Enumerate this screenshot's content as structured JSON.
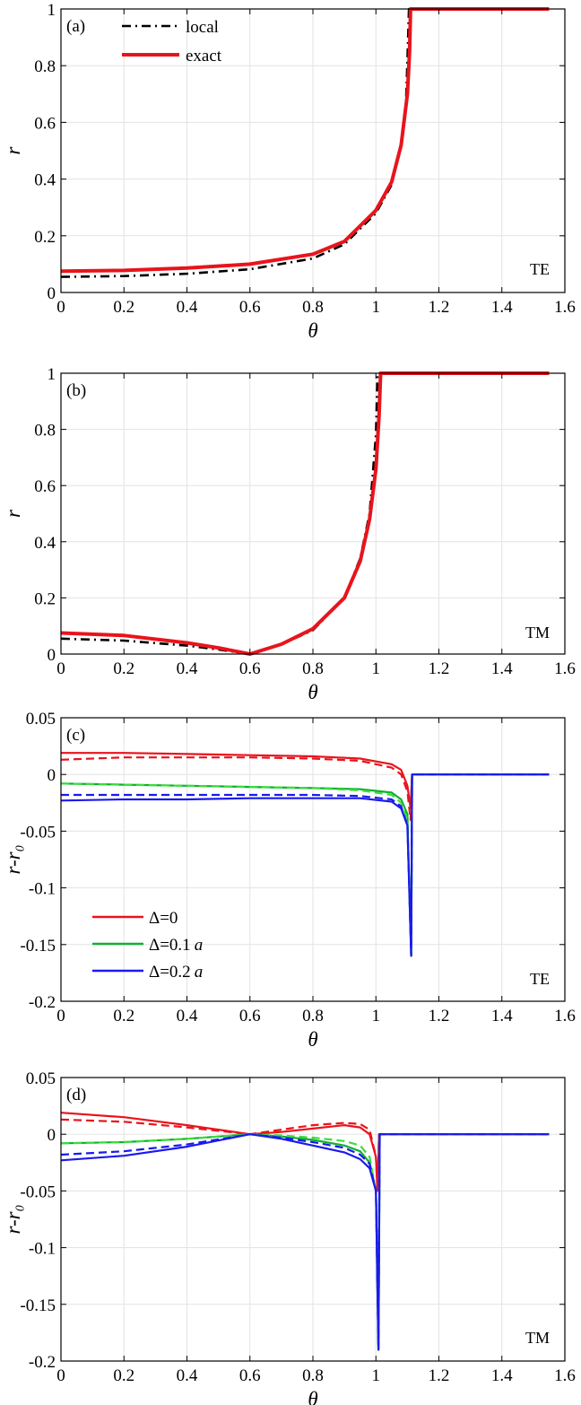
{
  "chart_data": [
    {
      "panel": "(a)",
      "type": "line",
      "xlabel": "θ",
      "ylabel": "r",
      "xlim": [
        0,
        1.6
      ],
      "ylim": [
        0,
        1
      ],
      "xticks": [
        "0",
        "0.2",
        "0.4",
        "0.6",
        "0.8",
        "1",
        "1.2",
        "1.4",
        "1.6"
      ],
      "yticks": [
        "0",
        "0.2",
        "0.4",
        "0.6",
        "0.8",
        "1"
      ],
      "annotation": "TE",
      "grid": true,
      "legend_position": "top-left",
      "series": [
        {
          "name": "local",
          "color": "#000000",
          "dash": "dashdot",
          "x": [
            0,
            0.2,
            0.4,
            0.6,
            0.8,
            0.9,
            1.0,
            1.05,
            1.08,
            1.095,
            1.1,
            1.105,
            1.55
          ],
          "y": [
            0.055,
            0.058,
            0.066,
            0.082,
            0.12,
            0.17,
            0.28,
            0.38,
            0.52,
            0.65,
            0.82,
            1.0,
            1.0
          ]
        },
        {
          "name": "exact",
          "color": "#e8141c",
          "dash": "solid",
          "x": [
            0,
            0.2,
            0.4,
            0.6,
            0.8,
            0.9,
            1.0,
            1.05,
            1.08,
            1.1,
            1.107,
            1.11,
            1.55
          ],
          "y": [
            0.075,
            0.078,
            0.086,
            0.1,
            0.135,
            0.18,
            0.29,
            0.39,
            0.52,
            0.7,
            0.85,
            1.0,
            1.0
          ]
        }
      ]
    },
    {
      "panel": "(b)",
      "type": "line",
      "xlabel": "θ",
      "ylabel": "r",
      "xlim": [
        0,
        1.6
      ],
      "ylim": [
        0,
        1
      ],
      "xticks": [
        "0",
        "0.2",
        "0.4",
        "0.6",
        "0.8",
        "1",
        "1.2",
        "1.4",
        "1.6"
      ],
      "yticks": [
        "0",
        "0.2",
        "0.4",
        "0.6",
        "0.8",
        "1"
      ],
      "annotation": "TM",
      "grid": true,
      "series": [
        {
          "name": "local",
          "color": "#000000",
          "dash": "dashdot",
          "x": [
            0,
            0.2,
            0.4,
            0.5,
            0.6,
            0.7,
            0.8,
            0.9,
            0.95,
            0.98,
            1.0,
            1.005,
            1.55
          ],
          "y": [
            0.055,
            0.048,
            0.03,
            0.016,
            0.0,
            0.035,
            0.085,
            0.2,
            0.34,
            0.5,
            0.78,
            1.0,
            1.0
          ]
        },
        {
          "name": "exact",
          "color": "#e8141c",
          "dash": "solid",
          "x": [
            0,
            0.2,
            0.4,
            0.5,
            0.6,
            0.7,
            0.8,
            0.9,
            0.95,
            0.98,
            1.0,
            1.01,
            1.015,
            1.55
          ],
          "y": [
            0.075,
            0.066,
            0.04,
            0.022,
            0.0,
            0.035,
            0.09,
            0.2,
            0.33,
            0.48,
            0.66,
            0.85,
            1.0,
            1.0
          ]
        }
      ]
    },
    {
      "panel": "(c)",
      "type": "line",
      "xlabel": "θ",
      "ylabel": "r-r₀",
      "xlim": [
        0,
        1.6
      ],
      "ylim": [
        -0.2,
        0.05
      ],
      "xticks": [
        "0",
        "0.2",
        "0.4",
        "0.6",
        "0.8",
        "1",
        "1.2",
        "1.4",
        "1.6"
      ],
      "yticks": [
        "-0.2",
        "-0.15",
        "-0.1",
        "-0.05",
        "0",
        "0.05"
      ],
      "annotation": "TE",
      "grid": true,
      "legend_position": "lower-left",
      "series": [
        {
          "name": "Δ=0",
          "color": "#e8141c",
          "dash": "solid",
          "x": [
            0,
            0.2,
            0.4,
            0.6,
            0.8,
            0.95,
            1.05,
            1.08,
            1.1,
            1.11,
            1.115,
            1.55
          ],
          "y": [
            0.019,
            0.019,
            0.018,
            0.017,
            0.016,
            0.014,
            0.009,
            0.004,
            -0.01,
            -0.03,
            0.0,
            0.0
          ]
        },
        {
          "name": "Δ=0",
          "color": "#e8141c",
          "dash": "dashed",
          "x": [
            0,
            0.2,
            0.4,
            0.6,
            0.8,
            0.95,
            1.05,
            1.08,
            1.1,
            1.11,
            1.115,
            1.55
          ],
          "y": [
            0.013,
            0.015,
            0.015,
            0.015,
            0.014,
            0.012,
            0.006,
            0.0,
            -0.015,
            -0.04,
            0.0,
            0.0
          ]
        },
        {
          "name": "Δ=0.1 a",
          "color": "#10b030",
          "dash": "solid",
          "x": [
            0,
            0.2,
            0.4,
            0.6,
            0.8,
            0.95,
            1.05,
            1.08,
            1.1,
            1.112,
            1.115,
            1.55
          ],
          "y": [
            -0.008,
            -0.009,
            -0.01,
            -0.011,
            -0.012,
            -0.013,
            -0.016,
            -0.022,
            -0.035,
            -0.16,
            0.0,
            0.0
          ]
        },
        {
          "name": "Δ=0.1 a",
          "color": "#3ddc3d",
          "dash": "dashed",
          "x": [
            0,
            0.2,
            0.4,
            0.6,
            0.8,
            0.95,
            1.05,
            1.08,
            1.1,
            1.112,
            1.115,
            1.55
          ],
          "y": [
            -0.008,
            -0.009,
            -0.01,
            -0.011,
            -0.012,
            -0.014,
            -0.018,
            -0.025,
            -0.04,
            -0.16,
            0.0,
            0.0
          ]
        },
        {
          "name": "Δ=0.2 a",
          "color": "#1a1aee",
          "dash": "solid",
          "x": [
            0,
            0.2,
            0.4,
            0.6,
            0.8,
            0.95,
            1.05,
            1.08,
            1.1,
            1.112,
            1.115,
            1.55
          ],
          "y": [
            -0.023,
            -0.022,
            -0.022,
            -0.021,
            -0.021,
            -0.021,
            -0.024,
            -0.03,
            -0.045,
            -0.16,
            0.0,
            0.0
          ]
        },
        {
          "name": "Δ=0.2 a",
          "color": "#1a1aee",
          "dash": "dashed",
          "x": [
            0,
            0.2,
            0.4,
            0.6,
            0.8,
            0.95,
            1.05,
            1.08,
            1.1,
            1.112,
            1.115,
            1.55
          ],
          "y": [
            -0.018,
            -0.018,
            -0.018,
            -0.018,
            -0.018,
            -0.019,
            -0.022,
            -0.028,
            -0.045,
            -0.16,
            0.0,
            0.0
          ]
        }
      ]
    },
    {
      "panel": "(d)",
      "type": "line",
      "xlabel": "θ",
      "ylabel": "r-r₀",
      "xlim": [
        0,
        1.6
      ],
      "ylim": [
        -0.2,
        0.05
      ],
      "xticks": [
        "0",
        "0.2",
        "0.4",
        "0.6",
        "0.8",
        "1",
        "1.2",
        "1.4",
        "1.6"
      ],
      "yticks": [
        "-0.2",
        "-0.15",
        "-0.1",
        "-0.05",
        "0",
        "0.05"
      ],
      "annotation": "TM",
      "grid": true,
      "series": [
        {
          "name": "Δ=0",
          "color": "#e8141c",
          "dash": "solid",
          "x": [
            0,
            0.2,
            0.4,
            0.6,
            0.7,
            0.8,
            0.9,
            0.95,
            0.98,
            1.0,
            1.005,
            1.01,
            1.55
          ],
          "y": [
            0.019,
            0.015,
            0.008,
            0.0,
            0.002,
            0.005,
            0.008,
            0.006,
            0.0,
            -0.02,
            -0.05,
            0.0,
            0.0
          ]
        },
        {
          "name": "Δ=0",
          "color": "#e8141c",
          "dash": "dashed",
          "x": [
            0,
            0.2,
            0.4,
            0.6,
            0.7,
            0.8,
            0.9,
            0.95,
            0.98,
            1.0,
            1.005,
            1.01,
            1.55
          ],
          "y": [
            0.013,
            0.011,
            0.006,
            0.0,
            0.004,
            0.008,
            0.01,
            0.009,
            0.004,
            -0.02,
            -0.05,
            0.0,
            0.0
          ]
        },
        {
          "name": "Δ=0.1 a",
          "color": "#10b030",
          "dash": "solid",
          "x": [
            0,
            0.2,
            0.4,
            0.6,
            0.7,
            0.8,
            0.9,
            0.95,
            0.98,
            1.0,
            1.008,
            1.012,
            1.55
          ],
          "y": [
            -0.008,
            -0.007,
            -0.004,
            0.0,
            -0.002,
            -0.005,
            -0.01,
            -0.015,
            -0.025,
            -0.05,
            -0.19,
            0.0,
            0.0
          ]
        },
        {
          "name": "Δ=0.1 a",
          "color": "#3ddc3d",
          "dash": "dashed",
          "x": [
            0,
            0.2,
            0.4,
            0.6,
            0.7,
            0.8,
            0.9,
            0.95,
            0.98,
            1.0,
            1.008,
            1.012,
            1.55
          ],
          "y": [
            -0.008,
            -0.007,
            -0.004,
            0.0,
            -0.001,
            -0.003,
            -0.006,
            -0.01,
            -0.02,
            -0.05,
            -0.19,
            0.0,
            0.0
          ]
        },
        {
          "name": "Δ=0.2 a",
          "color": "#1a1aee",
          "dash": "solid",
          "x": [
            0,
            0.2,
            0.4,
            0.6,
            0.7,
            0.8,
            0.9,
            0.95,
            0.98,
            1.0,
            1.008,
            1.012,
            1.55
          ],
          "y": [
            -0.023,
            -0.019,
            -0.011,
            0.0,
            -0.004,
            -0.01,
            -0.016,
            -0.022,
            -0.03,
            -0.05,
            -0.19,
            0.0,
            0.0
          ]
        },
        {
          "name": "Δ=0.2 a",
          "color": "#1a1aee",
          "dash": "dashed",
          "x": [
            0,
            0.2,
            0.4,
            0.6,
            0.7,
            0.8,
            0.9,
            0.95,
            0.98,
            1.0,
            1.008,
            1.012,
            1.55
          ],
          "y": [
            -0.018,
            -0.015,
            -0.009,
            0.0,
            -0.003,
            -0.007,
            -0.012,
            -0.018,
            -0.026,
            -0.05,
            -0.19,
            0.0,
            0.0
          ]
        }
      ]
    }
  ],
  "legend_ab": [
    {
      "label": "local",
      "color": "#000000",
      "dash": "dashdot"
    },
    {
      "label": "exact",
      "color": "#e8141c",
      "dash": "solid"
    }
  ],
  "legend_c": [
    {
      "label": "Δ=0",
      "italic_suffix": "",
      "color": "#e8141c"
    },
    {
      "label": "Δ=0.1",
      "italic_suffix": "a",
      "color": "#10b030"
    },
    {
      "label": "Δ=0.2",
      "italic_suffix": "a",
      "color": "#1a1aee"
    }
  ]
}
